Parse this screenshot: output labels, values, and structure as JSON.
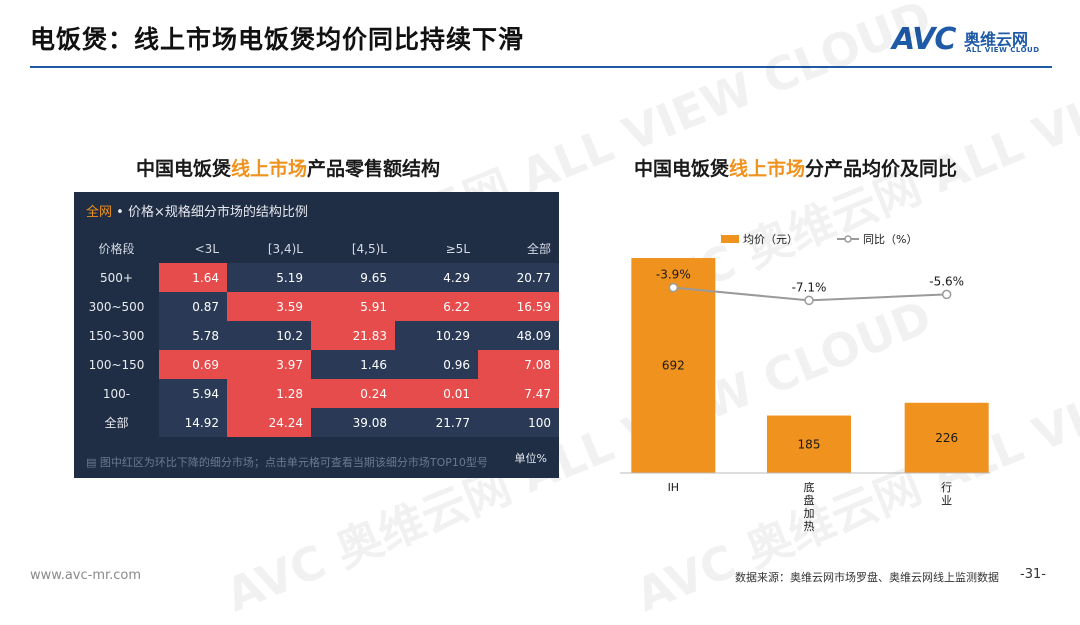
{
  "header": {
    "title": "电饭煲：线上市场电饭煲均价同比持续下滑"
  },
  "logo": {
    "mark": "AVC",
    "cn": "奥维云网",
    "en": "ALL VIEW CLOUD"
  },
  "watermark": {
    "text": "AVC 奥维云网 ALL VIEW CLOUD"
  },
  "left_panel": {
    "title_pre": "中国电饭煲",
    "title_hl": "线上市场",
    "title_post": "产品零售额结构",
    "table_title_hl": "全网",
    "table_title_rest": " • 价格×规格细分市场的结构比例",
    "columns": [
      "价格段",
      "<3L",
      "[3,4)L",
      "[4,5)L",
      "≥5L",
      "全部"
    ],
    "rows": [
      {
        "label": "500+",
        "values": [
          "1.64",
          "5.19",
          "9.65",
          "4.29",
          "20.77"
        ],
        "red": [
          true,
          false,
          false,
          false,
          false
        ]
      },
      {
        "label": "300~500",
        "values": [
          "0.87",
          "3.59",
          "5.91",
          "6.22",
          "16.59"
        ],
        "red": [
          false,
          true,
          true,
          true,
          true
        ]
      },
      {
        "label": "150~300",
        "values": [
          "5.78",
          "10.2",
          "21.83",
          "10.29",
          "48.09"
        ],
        "red": [
          false,
          false,
          true,
          false,
          false
        ]
      },
      {
        "label": "100~150",
        "values": [
          "0.69",
          "3.97",
          "1.46",
          "0.96",
          "7.08"
        ],
        "red": [
          true,
          true,
          false,
          false,
          true
        ]
      },
      {
        "label": "100-",
        "values": [
          "5.94",
          "1.28",
          "0.24",
          "0.01",
          "7.47"
        ],
        "red": [
          false,
          true,
          true,
          true,
          true
        ]
      },
      {
        "label": "全部",
        "values": [
          "14.92",
          "24.24",
          "39.08",
          "21.77",
          "100"
        ],
        "red": [
          false,
          true,
          false,
          false,
          false
        ]
      }
    ],
    "footnote": "图中红区为环比下降的细分市场；点击单元格可查看当期该细分市场TOP10型号",
    "unit": "单位%",
    "colors": {
      "panel_bg": "#1f2d45",
      "cell_bg": "#2a3a56",
      "red": "#e74c4c",
      "accent": "#f0921e"
    }
  },
  "right_panel": {
    "title_pre": "中国电饭煲",
    "title_hl": "线上市场",
    "title_post": "分产品均价及同比"
  },
  "chart_data": {
    "type": "bar",
    "categories": [
      "IH",
      "底盘加热",
      "行业"
    ],
    "category_display": [
      "IH",
      "底\n盘\n加\n热",
      "行\n业"
    ],
    "series": [
      {
        "name": "均价（元）",
        "type": "bar",
        "values": [
          692,
          185,
          226
        ],
        "color": "#f0921e"
      },
      {
        "name": "同比（%）",
        "type": "line",
        "values": [
          -3.9,
          -7.1,
          -5.6
        ],
        "labels": [
          "-3.9%",
          "-7.1%",
          "-5.6%"
        ],
        "color": "#9a9a9a"
      }
    ],
    "ylim": [
      0,
      750
    ],
    "y2lim": [
      -9,
      1
    ],
    "legend": "top-center",
    "grid": false
  },
  "footer": {
    "site": "www.avc-mr.com",
    "source": "数据来源：奥维云网市场罗盘、奥维云网线上监测数据",
    "page": "-31-"
  }
}
